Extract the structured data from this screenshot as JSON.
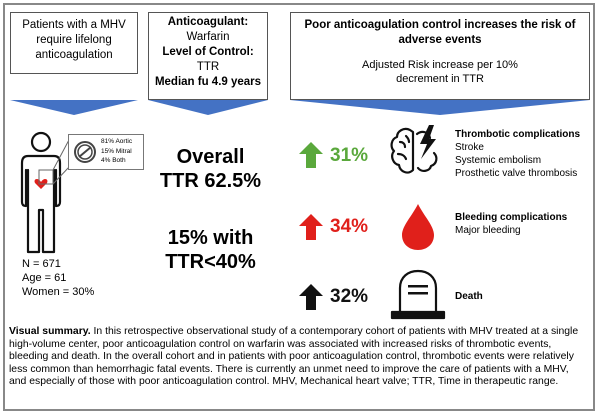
{
  "box_patients": {
    "text": "Patients with a MHV require lifelong anticoagulation"
  },
  "box_anticoag": {
    "label_anticoagulant": "Anticoagulant:",
    "value_anticoagulant": "Warfarin",
    "label_control": "Level of Control:",
    "value_control": "TTR",
    "median_fu": "Median fu 4.9 years"
  },
  "box_risk": {
    "title": "Poor anticoagulation control increases the risk of adverse events",
    "subtitle": "Adjusted Risk increase per 10% decrement in TTR"
  },
  "valve_legend": {
    "aortic": "81% Aortic",
    "mitral": "15% Mitral",
    "both": "4% Both"
  },
  "patient_stats": {
    "n": "N = 671",
    "age": "Age = 61",
    "women": "Women = 30%"
  },
  "overall": {
    "line1": "Overall",
    "line2": "TTR 62.5%"
  },
  "low_ttr": {
    "line1": "15% with",
    "line2": "TTR<40%"
  },
  "outcomes": [
    {
      "percent": "31%",
      "title": "Thrombotic complications",
      "items": [
        "Stroke",
        "Systemic embolism",
        "Prosthetic valve thrombosis"
      ],
      "color": "#5aa83c",
      "icon": "brain-lightning-icon"
    },
    {
      "percent": "34%",
      "title": "Bleeding complications",
      "items": [
        "Major bleeding"
      ],
      "color": "#e0201b",
      "icon": "blood-drop-icon"
    },
    {
      "percent": "32%",
      "title": "Death",
      "items": [],
      "color": "#111111",
      "icon": "tombstone-icon"
    }
  ],
  "summary": {
    "lead": "Visual summary.",
    "body": " In this retrospective observational study of  a contemporary cohort of patients with MHV treated at a single high-volume center, poor anticoagulation control on warfarin was associated with increased risks of thrombotic events, bleeding and death. In the overall cohort and in patients with poor anticoagulation control, thrombotic events were relatively less common than hemorrhagic fatal events. There is currently an unmet need to improve the care of patients with a MHV, and especially of those with poor anticoagulation control. MHV, Mechanical heart valve; TTR, Time in therapeutic range."
  },
  "colors": {
    "blue_arrow": "#4472c4",
    "green": "#5aa83c",
    "red": "#e0201b",
    "heart": "#e0201b"
  }
}
